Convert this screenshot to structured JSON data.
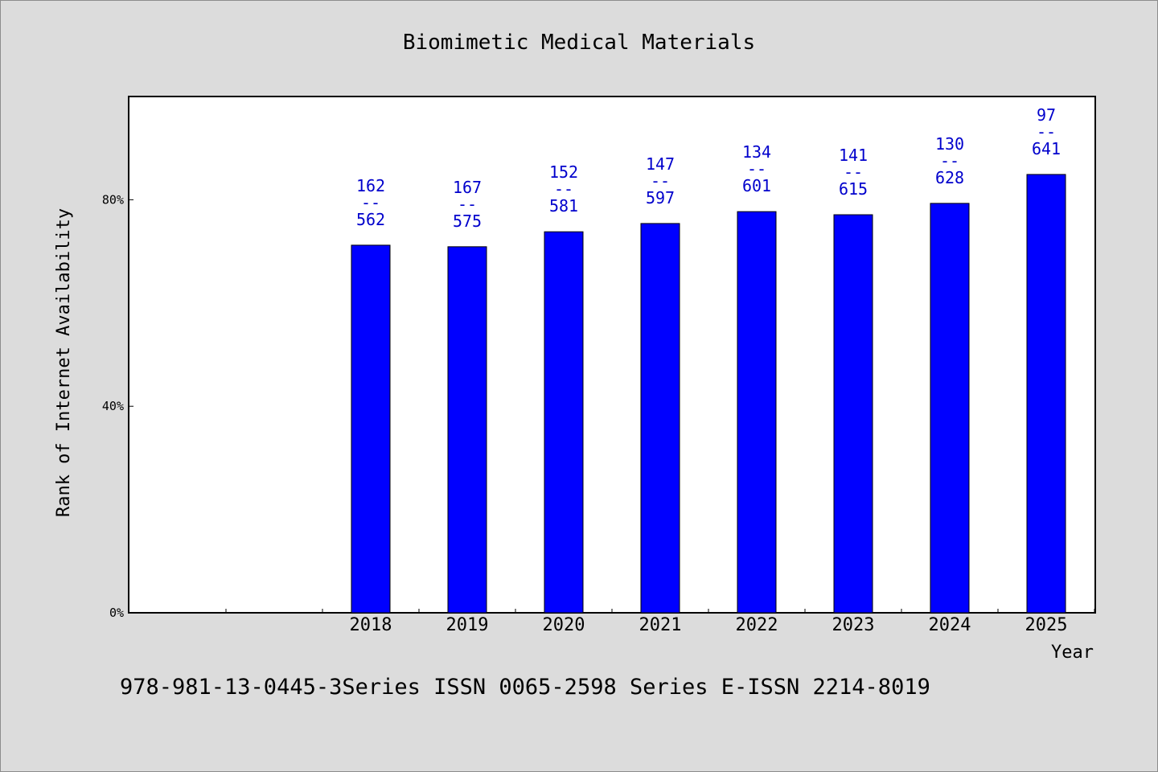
{
  "chart_data": {
    "type": "bar",
    "title": "Biomimetic Medical Materials",
    "xlabel": "Year",
    "ylabel": "Rank of Internet Availability",
    "y_ticks": [
      "0%",
      "40%",
      "80%"
    ],
    "ylim": [
      0,
      100
    ],
    "grid": false,
    "colors": {
      "bar": "#0000ff",
      "label": "#0000cc"
    },
    "categories": [
      "2018",
      "2019",
      "2020",
      "2021",
      "2022",
      "2023",
      "2024",
      "2025"
    ],
    "values": [
      71.2,
      70.9,
      73.8,
      75.4,
      77.7,
      77.1,
      79.3,
      84.9
    ],
    "rank": [
      "162",
      "167",
      "152",
      "147",
      "134",
      "141",
      "130",
      "97"
    ],
    "total": [
      "562",
      "575",
      "581",
      "597",
      "601",
      "615",
      "628",
      "641"
    ],
    "separator": "--"
  },
  "footer": "978-981-13-0445-3Series ISSN 0065-2598 Series E-ISSN 2214-8019"
}
